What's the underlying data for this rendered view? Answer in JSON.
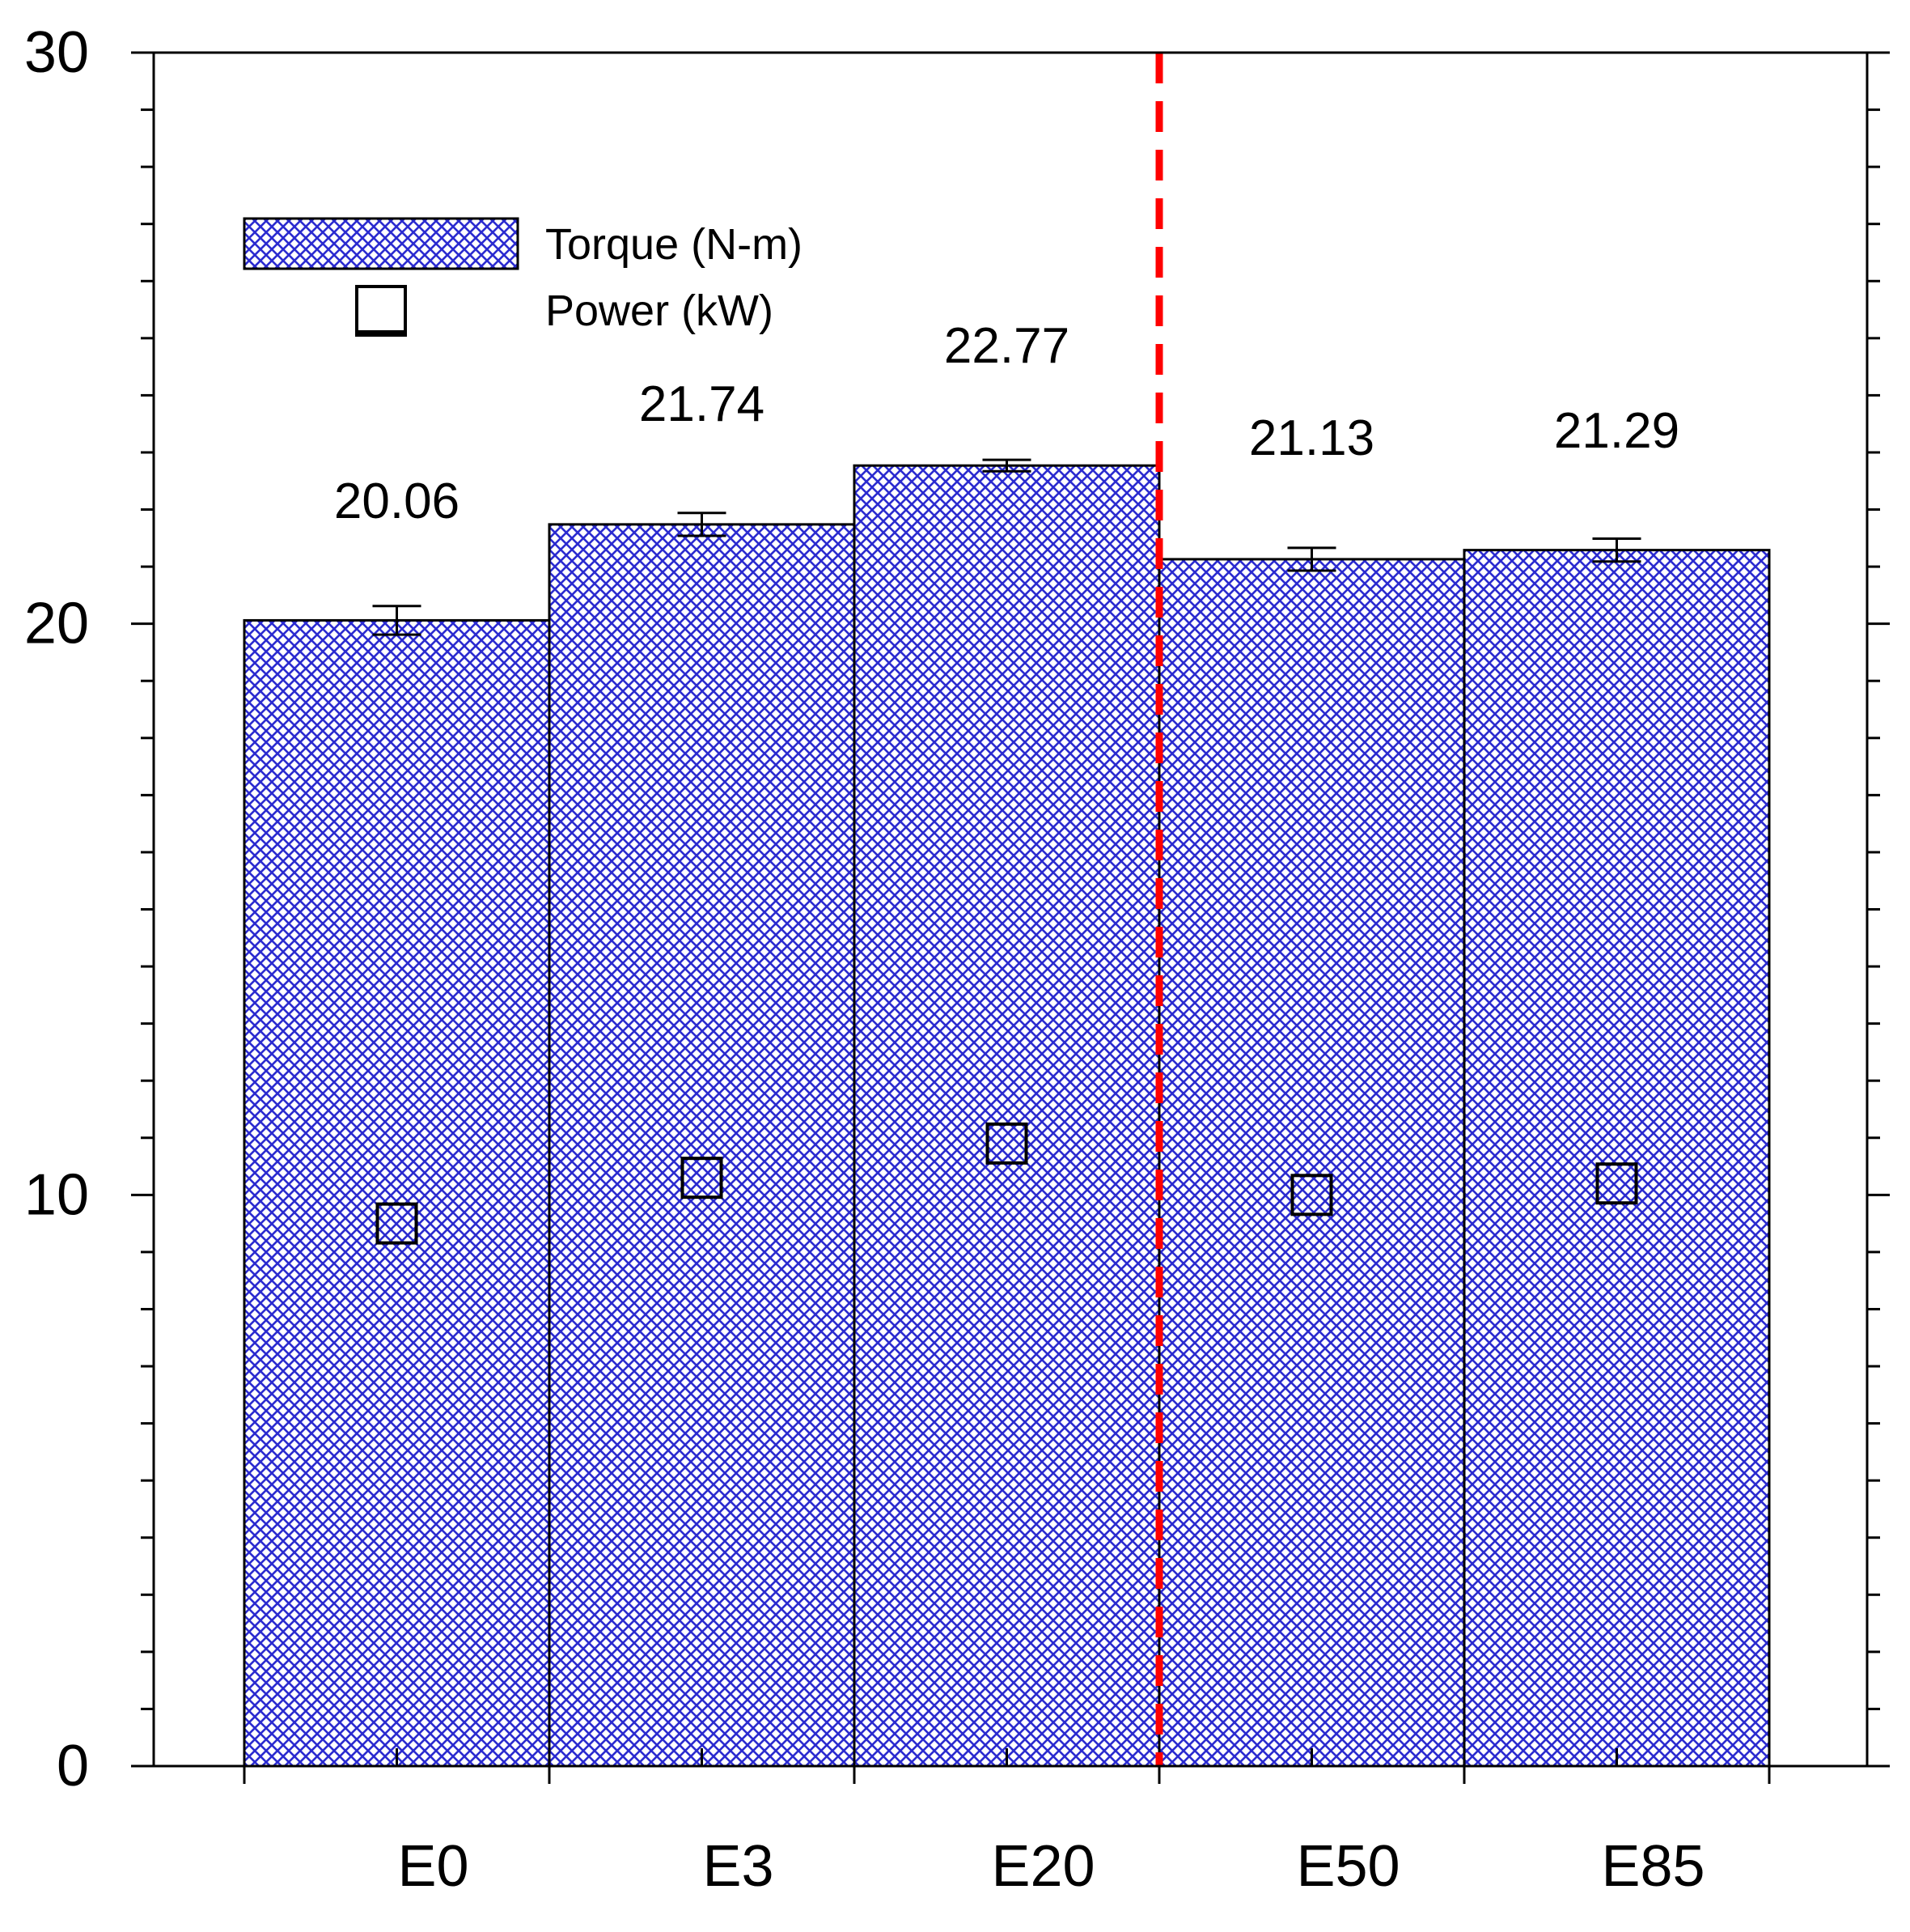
{
  "chart_data": {
    "type": "bar",
    "title": "",
    "xlabel": "",
    "ylabel": "",
    "ylim": [
      0,
      30
    ],
    "yticks_major": [
      0,
      10,
      20,
      30
    ],
    "yticks_minor_step": 1,
    "categories": [
      "E0",
      "E3",
      "E20",
      "E50",
      "E85"
    ],
    "series": [
      {
        "name": "Torque (N-m)",
        "kind": "bar",
        "values": [
          20.06,
          21.74,
          22.77,
          21.13,
          21.29
        ],
        "errors": [
          0.25,
          0.2,
          0.1,
          0.2,
          0.2
        ],
        "labels": [
          "20.06",
          "21.74",
          "22.77",
          "21.13",
          "21.29"
        ],
        "fill": "#2b2bd0",
        "pattern": "crosshatch"
      },
      {
        "name": "Power (kW)",
        "kind": "marker",
        "marker": "open-square",
        "values": [
          9.5,
          10.3,
          10.9,
          10.0,
          10.2
        ]
      }
    ],
    "reference_line": {
      "between": [
        "E20",
        "E50"
      ],
      "color": "#ff0000",
      "style": "dashed"
    },
    "legend": {
      "position": "top-left"
    },
    "grid": false
  }
}
